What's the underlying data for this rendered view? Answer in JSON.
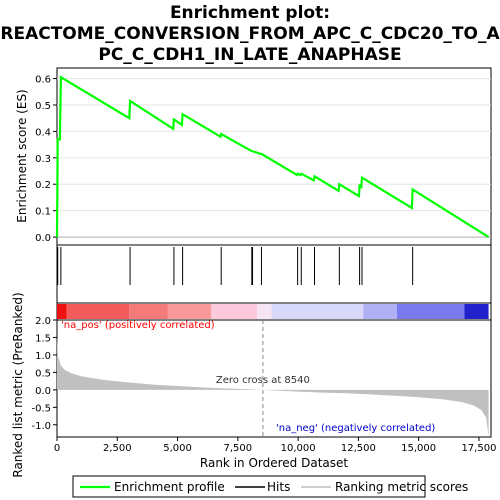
{
  "chart_data": [
    {
      "type": "line",
      "title_lines": [
        "Enrichment plot:",
        "REACTOME_CONVERSION_FROM_APC_C_CDC20_TO_A",
        "PC_C_CDH1_IN_LATE_ANAPHASE"
      ],
      "ylabel": "Enrichment score (ES)",
      "xlim": [
        0,
        18000
      ],
      "ylim": [
        -0.03,
        0.64
      ],
      "yticks": [
        0.0,
        0.1,
        0.2,
        0.3,
        0.4,
        0.5,
        0.6
      ],
      "ytick_labels": [
        "0.0",
        "0.1",
        "0.2",
        "0.3",
        "0.4",
        "0.5",
        "0.6"
      ],
      "color": "#00ff00",
      "series": [
        {
          "name": "Enrichment profile",
          "x": [
            0,
            30,
            120,
            160,
            3000,
            3030,
            4820,
            4850,
            5180,
            5210,
            6780,
            6810,
            8080,
            8110,
            8450,
            8480,
            9950,
            9980,
            10100,
            10130,
            10650,
            10680,
            11680,
            11710,
            12520,
            12550,
            12620,
            12650,
            14720,
            14750,
            17900
          ],
          "y": [
            0.0,
            0.37,
            0.37,
            0.605,
            0.45,
            0.515,
            0.41,
            0.445,
            0.425,
            0.465,
            0.38,
            0.39,
            0.325,
            0.325,
            0.315,
            0.315,
            0.235,
            0.24,
            0.235,
            0.24,
            0.215,
            0.23,
            0.175,
            0.2,
            0.155,
            0.195,
            0.19,
            0.225,
            0.11,
            0.18,
            0.0
          ]
        }
      ]
    },
    {
      "type": "hits",
      "hits": [
        30,
        160,
        3030,
        4850,
        5210,
        6810,
        8080,
        8110,
        8480,
        9980,
        10130,
        10680,
        11710,
        12550,
        12650,
        14750
      ]
    },
    {
      "type": "heatmap",
      "description_colors": [
        "#ff0000",
        "#ff4040",
        "#ff8080",
        "#ffc0c0",
        "#e0e0ff",
        "#a0a0ff",
        "#6060ff",
        "#0000cc"
      ],
      "bands": [
        {
          "x0": 0,
          "x1": 400,
          "color": "#ee1111"
        },
        {
          "x0": 400,
          "x1": 3000,
          "color": "#f35a5a"
        },
        {
          "x0": 3000,
          "x1": 4600,
          "color": "#f57a7a"
        },
        {
          "x0": 4600,
          "x1": 6400,
          "color": "#f99a9a"
        },
        {
          "x0": 6400,
          "x1": 8300,
          "color": "#fcc8dc"
        },
        {
          "x0": 8300,
          "x1": 8900,
          "color": "#f5e5f5"
        },
        {
          "x0": 8900,
          "x1": 12700,
          "color": "#d8d8fa"
        },
        {
          "x0": 12700,
          "x1": 14100,
          "color": "#b0b0f5"
        },
        {
          "x0": 14100,
          "x1": 16900,
          "color": "#7a7aee"
        },
        {
          "x0": 16900,
          "x1": 17900,
          "color": "#2222cc"
        }
      ]
    },
    {
      "type": "area",
      "ylabel": "Ranked list metric (PreRanked)",
      "xlabel": "Rank in Ordered Dataset",
      "xlim": [
        0,
        18000
      ],
      "ylim": [
        -1.35,
        2.0
      ],
      "xticks": [
        0,
        2500,
        5000,
        7500,
        10000,
        12500,
        15000,
        17500
      ],
      "xtick_labels": [
        "0",
        "2,500",
        "5,000",
        "7,500",
        "10,000",
        "12,500",
        "15,000",
        "17,500"
      ],
      "yticks": [
        -1.0,
        -0.5,
        0.0,
        0.5,
        1.0,
        1.5,
        2.0
      ],
      "ytick_labels": [
        "-1.0",
        "-0.5",
        "0.0",
        "0.5",
        "1.0",
        "1.5",
        "2.0"
      ],
      "x": [
        0,
        50,
        150,
        300,
        600,
        1000,
        1500,
        2000,
        3000,
        4000,
        5000,
        6000,
        7000,
        8000,
        8540,
        9000,
        10000,
        11000,
        12000,
        13000,
        14000,
        15000,
        16000,
        16800,
        17300,
        17600,
        17800,
        17900
      ],
      "values": [
        1.5,
        0.95,
        0.72,
        0.58,
        0.47,
        0.39,
        0.33,
        0.28,
        0.21,
        0.15,
        0.11,
        0.07,
        0.04,
        0.015,
        0.0,
        -0.02,
        -0.05,
        -0.08,
        -0.1,
        -0.13,
        -0.17,
        -0.21,
        -0.27,
        -0.35,
        -0.45,
        -0.58,
        -0.8,
        -1.35
      ],
      "zero_cross_label": "Zero cross at 8540",
      "zero_cross": 8540,
      "pos_label": "'na_pos' (positively correlated)",
      "neg_label": "'na_neg' (negatively correlated)",
      "pos_color": "#ff0000",
      "neg_color": "#0000cc",
      "fill_color": "#c0c0c0"
    }
  ],
  "legend": {
    "items": [
      {
        "label": "Enrichment profile",
        "color": "#00ff00"
      },
      {
        "label": "Hits",
        "color": "#000000"
      },
      {
        "label": "Ranking metric scores",
        "color": "#c0c0c0"
      }
    ]
  }
}
